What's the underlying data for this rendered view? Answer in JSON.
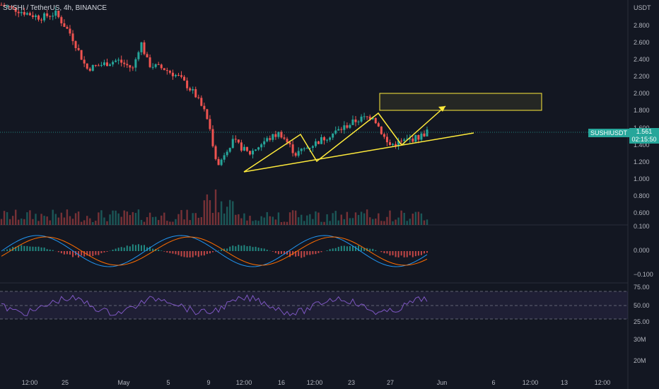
{
  "header": {
    "symbol_line": "SUSHI / TetherUS, 4h, BINANCE"
  },
  "currency": "USDT",
  "price_axis": [
    "2.800",
    "2.600",
    "2.400",
    "2.200",
    "2.000",
    "1.800",
    "1.600",
    "1.400",
    "1.200",
    "1.000",
    "0.800",
    "0.600"
  ],
  "macd_axis": [
    "0.100",
    "0.000",
    "−0.100"
  ],
  "rsi_axis": [
    "75.00",
    "50.00",
    "25.00"
  ],
  "volume_axis": [
    "30M",
    "20M"
  ],
  "time_axis": [
    "12:00",
    "25",
    "May",
    "5",
    "9",
    "12:00",
    "16",
    "12:00",
    "23",
    "27",
    "Jun",
    "6",
    "12:00",
    "13",
    "12:00"
  ],
  "ticker_label": "SUSHIUSDT",
  "last_price": "1.561",
  "countdown": "02:15:50",
  "colors": {
    "up": "#26a69a",
    "down": "#ef5350",
    "annotation": "#ffeb3b",
    "rsi": "#7e57c2",
    "macd": "#2196f3",
    "signal": "#ff6d00"
  },
  "chart_data": {
    "type": "candlestick",
    "title": "SUSHI / TetherUS, 4h, BINANCE",
    "ylim": [
      0.5,
      3.0
    ],
    "last": 1.561,
    "path_approx": [
      [
        0,
        3.05
      ],
      [
        10,
        2.9
      ],
      [
        14,
        2.95
      ],
      [
        18,
        2.7
      ],
      [
        22,
        2.3
      ],
      [
        26,
        2.35
      ],
      [
        30,
        2.4
      ],
      [
        34,
        2.3
      ],
      [
        36,
        2.62
      ],
      [
        38,
        2.35
      ],
      [
        42,
        2.3
      ],
      [
        46,
        2.2
      ],
      [
        50,
        2.0
      ],
      [
        53,
        1.75
      ],
      [
        56,
        1.15
      ],
      [
        58,
        1.35
      ],
      [
        60,
        1.45
      ],
      [
        64,
        1.3
      ],
      [
        68,
        1.45
      ],
      [
        72,
        1.55
      ],
      [
        76,
        1.3
      ],
      [
        80,
        1.4
      ],
      [
        84,
        1.5
      ],
      [
        88,
        1.6
      ],
      [
        92,
        1.7
      ],
      [
        96,
        1.75
      ],
      [
        100,
        1.4
      ],
      [
        104,
        1.45
      ],
      [
        108,
        1.5
      ],
      [
        110,
        1.561
      ]
    ]
  }
}
